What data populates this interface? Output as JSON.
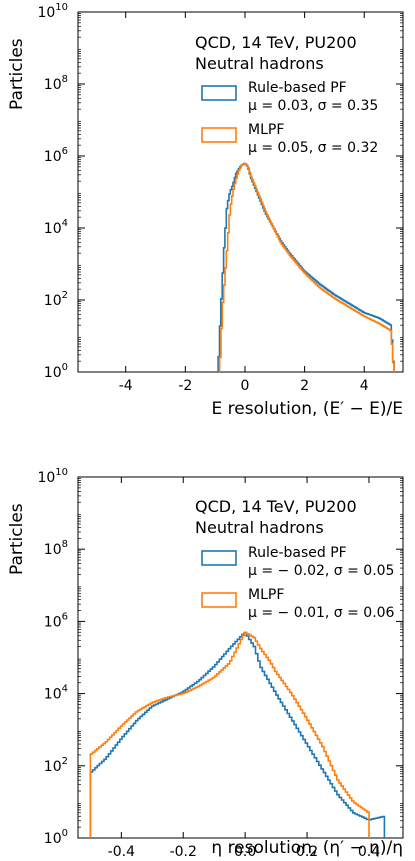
{
  "chart_data": [
    {
      "type": "step",
      "ylabel": "Particles",
      "xlabel": "E resolution, (E′ − E)/E",
      "xlim": [
        -5.6,
        5.3
      ],
      "ylim_log10": [
        0,
        10
      ],
      "yscale": "log",
      "xticks": [
        -4,
        -2,
        0,
        2,
        4
      ],
      "xtick_labels": [
        "-4",
        "-2",
        "0",
        "2",
        "4"
      ],
      "yticks_exp": [
        0,
        2,
        4,
        6,
        8,
        10
      ],
      "ytick_base": "10",
      "annotations": [
        "QCD, 14 TeV, PU200",
        "Neutral hadrons"
      ],
      "legend_placement": "upper-right",
      "series": [
        {
          "name": "Rule-based PF",
          "stats": "μ = 0.03,  σ = 0.35",
          "color": "#1f77b4",
          "points": [
            [
              -0.9,
              0
            ],
            [
              -0.82,
              1.5
            ],
            [
              -0.7,
              3.4
            ],
            [
              -0.6,
              4.6
            ],
            [
              -0.5,
              5.0
            ],
            [
              -0.4,
              5.2
            ],
            [
              -0.3,
              5.5
            ],
            [
              -0.2,
              5.65
            ],
            [
              -0.1,
              5.75
            ],
            [
              0.0,
              5.8
            ],
            [
              0.1,
              5.7
            ],
            [
              0.2,
              5.4
            ],
            [
              0.35,
              5.1
            ],
            [
              0.5,
              4.8
            ],
            [
              0.7,
              4.4
            ],
            [
              0.9,
              4.1
            ],
            [
              1.2,
              3.65
            ],
            [
              1.5,
              3.3
            ],
            [
              2.0,
              2.8
            ],
            [
              2.5,
              2.45
            ],
            [
              3.0,
              2.15
            ],
            [
              3.5,
              1.9
            ],
            [
              4.0,
              1.65
            ],
            [
              4.5,
              1.5
            ],
            [
              4.9,
              1.3
            ],
            [
              5.0,
              0
            ]
          ]
        },
        {
          "name": "MLPF",
          "stats": "μ = 0.05,  σ = 0.32",
          "color": "#ff7f0e",
          "points": [
            [
              -0.85,
              0
            ],
            [
              -0.75,
              1.8
            ],
            [
              -0.6,
              3.4
            ],
            [
              -0.5,
              4.5
            ],
            [
              -0.4,
              5.0
            ],
            [
              -0.3,
              5.35
            ],
            [
              -0.2,
              5.6
            ],
            [
              -0.1,
              5.75
            ],
            [
              0.0,
              5.8
            ],
            [
              0.1,
              5.72
            ],
            [
              0.2,
              5.45
            ],
            [
              0.35,
              5.15
            ],
            [
              0.5,
              4.85
            ],
            [
              0.7,
              4.45
            ],
            [
              0.9,
              4.1
            ],
            [
              1.2,
              3.6
            ],
            [
              1.5,
              3.25
            ],
            [
              2.0,
              2.75
            ],
            [
              2.5,
              2.35
            ],
            [
              3.0,
              2.05
            ],
            [
              3.5,
              1.8
            ],
            [
              4.0,
              1.55
            ],
            [
              4.5,
              1.35
            ],
            [
              4.9,
              1.15
            ],
            [
              5.0,
              0
            ]
          ]
        }
      ]
    },
    {
      "type": "step",
      "ylabel": "Particles",
      "xlabel": "η resolution, (η′ − η)/η",
      "xlim": [
        -0.54,
        0.51
      ],
      "ylim_log10": [
        0,
        10
      ],
      "yscale": "log",
      "xticks": [
        -0.4,
        -0.2,
        0.0,
        0.2,
        0.4
      ],
      "xtick_labels": [
        "-0.4",
        "-0.2",
        "0.0",
        "0.2",
        "0.4"
      ],
      "yticks_exp": [
        0,
        2,
        4,
        6,
        8,
        10
      ],
      "ytick_base": "10",
      "annotations": [
        "QCD, 14 TeV, PU200",
        "Neutral hadrons"
      ],
      "legend_placement": "upper-right",
      "series": [
        {
          "name": "Rule-based PF",
          "stats": "μ = − 0.02,  σ = 0.05",
          "color": "#1f77b4",
          "points": [
            [
              -0.5,
              1.8
            ],
            [
              -0.45,
              2.2
            ],
            [
              -0.4,
              2.75
            ],
            [
              -0.35,
              3.25
            ],
            [
              -0.3,
              3.65
            ],
            [
              -0.25,
              3.85
            ],
            [
              -0.2,
              4.05
            ],
            [
              -0.15,
              4.35
            ],
            [
              -0.1,
              4.75
            ],
            [
              -0.05,
              5.25
            ],
            [
              0.0,
              5.7
            ],
            [
              0.03,
              5.3
            ],
            [
              0.05,
              4.75
            ],
            [
              0.08,
              4.3
            ],
            [
              0.1,
              4.0
            ],
            [
              0.15,
              3.3
            ],
            [
              0.2,
              2.6
            ],
            [
              0.25,
              1.9
            ],
            [
              0.3,
              1.2
            ],
            [
              0.35,
              0.7
            ],
            [
              0.4,
              0.5
            ],
            [
              0.45,
              0.6
            ]
          ]
        },
        {
          "name": "MLPF",
          "stats": "μ = − 0.01,  σ = 0.06",
          "color": "#ff7f0e",
          "points": [
            [
              -0.5,
              2.3
            ],
            [
              -0.45,
              2.65
            ],
            [
              -0.4,
              3.1
            ],
            [
              -0.35,
              3.5
            ],
            [
              -0.3,
              3.75
            ],
            [
              -0.25,
              3.9
            ],
            [
              -0.2,
              4.0
            ],
            [
              -0.15,
              4.2
            ],
            [
              -0.1,
              4.45
            ],
            [
              -0.05,
              4.85
            ],
            [
              0.0,
              5.7
            ],
            [
              0.03,
              5.55
            ],
            [
              0.05,
              5.25
            ],
            [
              0.08,
              4.9
            ],
            [
              0.1,
              4.6
            ],
            [
              0.15,
              4.0
            ],
            [
              0.2,
              3.3
            ],
            [
              0.25,
              2.55
            ],
            [
              0.3,
              1.6
            ],
            [
              0.35,
              1.0
            ],
            [
              0.4,
              0.7
            ]
          ]
        }
      ]
    }
  ]
}
